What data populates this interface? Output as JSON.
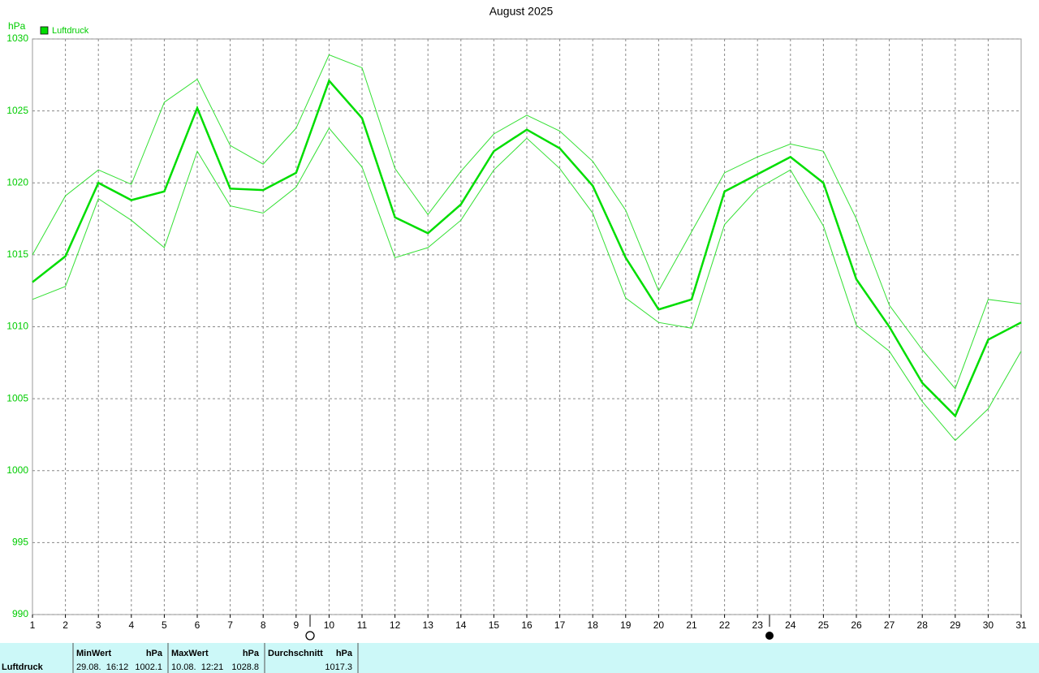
{
  "chart_data": {
    "type": "line",
    "title": "August 2025",
    "y_label": "hPa",
    "x": [
      1,
      2,
      3,
      4,
      5,
      6,
      7,
      8,
      9,
      10,
      11,
      12,
      13,
      14,
      15,
      16,
      17,
      18,
      19,
      20,
      21,
      22,
      23,
      24,
      25,
      26,
      27,
      28,
      29,
      30,
      31
    ],
    "xlim": [
      1,
      31
    ],
    "xticks": [
      1,
      2,
      3,
      4,
      5,
      6,
      7,
      8,
      9,
      10,
      11,
      12,
      13,
      14,
      15,
      16,
      17,
      18,
      19,
      20,
      21,
      22,
      23,
      24,
      25,
      26,
      27,
      28,
      29,
      30,
      31
    ],
    "ylim": [
      990,
      1030
    ],
    "yticks": [
      990,
      995,
      1000,
      1005,
      1010,
      1015,
      1020,
      1025,
      1030
    ],
    "grid": true,
    "legend": "top-left",
    "series": [
      {
        "color": "#33e033",
        "values": [
          1015.0,
          1019.1,
          1020.9,
          1019.9,
          1025.6,
          1027.2,
          1022.6,
          1021.3,
          1023.8,
          1028.9,
          1028.0,
          1021.0,
          1017.8,
          1020.8,
          1023.4,
          1024.7,
          1023.6,
          1021.5,
          1018.1,
          1012.5,
          1016.6,
          1020.7,
          1021.8,
          1022.7,
          1022.2,
          1017.5,
          1011.5,
          1008.4,
          1005.7,
          1011.9,
          1011.6
        ]
      },
      {
        "name": "Luftdruck",
        "color": "#00dd00",
        "values": [
          1013.1,
          1014.9,
          1020.0,
          1018.8,
          1019.4,
          1025.2,
          1019.6,
          1019.5,
          1020.7,
          1027.1,
          1024.5,
          1017.6,
          1016.5,
          1018.5,
          1022.2,
          1023.7,
          1022.4,
          1019.8,
          1014.8,
          1011.2,
          1011.9,
          1019.4,
          1020.6,
          1021.8,
          1020.0,
          1013.3,
          1010.0,
          1006.1,
          1003.8,
          1009.1,
          1010.3
        ]
      },
      {
        "color": "#33e033",
        "values": [
          1011.9,
          1012.8,
          1018.9,
          1017.4,
          1015.5,
          1022.2,
          1018.4,
          1017.9,
          1019.7,
          1023.8,
          1021.1,
          1014.8,
          1015.5,
          1017.4,
          1020.9,
          1023.1,
          1021.0,
          1017.9,
          1012.0,
          1010.3,
          1009.9,
          1017.1,
          1019.6,
          1020.9,
          1017.0,
          1010.1,
          1008.3,
          1004.8,
          1002.1,
          1004.3,
          1008.3
        ]
      }
    ]
  },
  "summary_table": {
    "row_label": "Luftdruck",
    "columns": [
      {
        "title": "MinWert",
        "unit": "hPa",
        "time": "29.08.  16:12",
        "value": 1002.1
      },
      {
        "title": "MaxWert",
        "unit": "hPa",
        "time": "10.08.  12:21",
        "value": 1028.8
      },
      {
        "title": "Durchschnitt",
        "unit": "hPa",
        "value": 1017.3
      }
    ]
  }
}
